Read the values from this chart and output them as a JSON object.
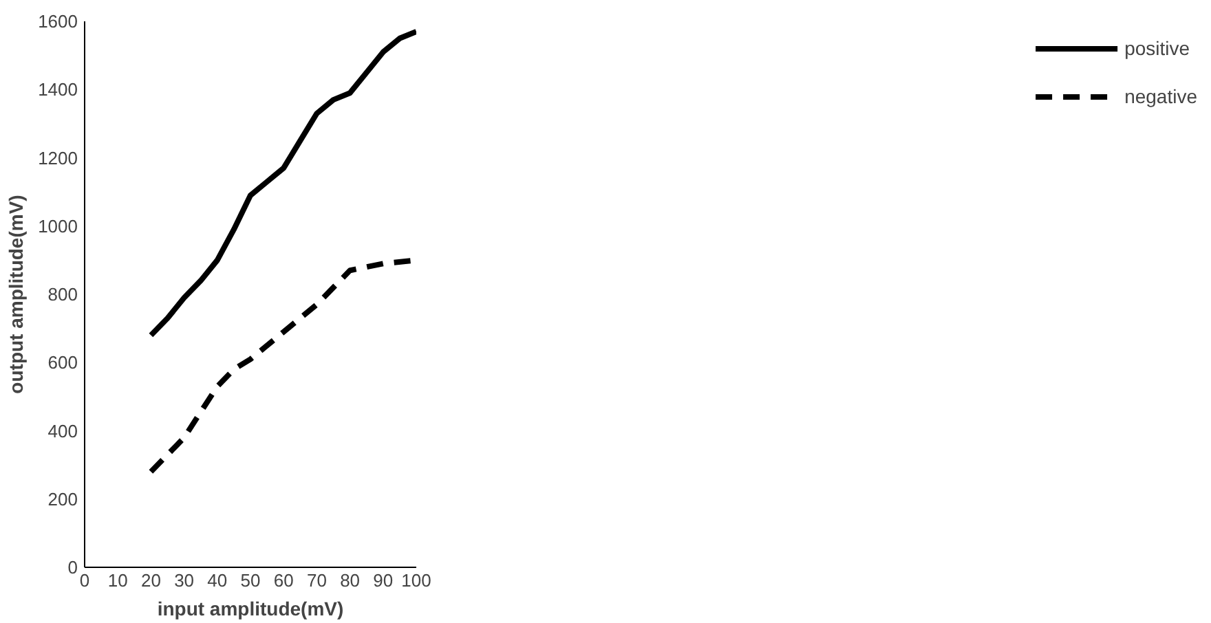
{
  "chart_data": {
    "type": "line",
    "xlabel": "input amplitude(mV)",
    "ylabel": "output amplitude(mV)",
    "xlim": [
      0,
      100
    ],
    "ylim": [
      0,
      1600
    ],
    "xticks": [
      0,
      10,
      20,
      30,
      40,
      50,
      60,
      70,
      80,
      90,
      100
    ],
    "yticks": [
      0,
      200,
      400,
      600,
      800,
      1000,
      1200,
      1400,
      1600
    ],
    "grid": false,
    "legend": "right",
    "marker": "none",
    "series": [
      {
        "name": "positive",
        "color": "#000000",
        "line_style": "solid",
        "x": [
          20,
          25,
          30,
          35,
          40,
          45,
          50,
          55,
          60,
          65,
          70,
          75,
          80,
          85,
          90,
          95,
          100
        ],
        "values": [
          680,
          730,
          790,
          840,
          900,
          990,
          1090,
          1130,
          1170,
          1250,
          1330,
          1370,
          1390,
          1450,
          1510,
          1550,
          1570
        ]
      },
      {
        "name": "negative",
        "color": "#000000",
        "line_style": "dashed",
        "x": [
          20,
          30,
          40,
          45,
          50,
          60,
          70,
          80,
          90,
          100
        ],
        "values": [
          280,
          380,
          530,
          580,
          610,
          690,
          770,
          870,
          890,
          900
        ]
      }
    ]
  }
}
